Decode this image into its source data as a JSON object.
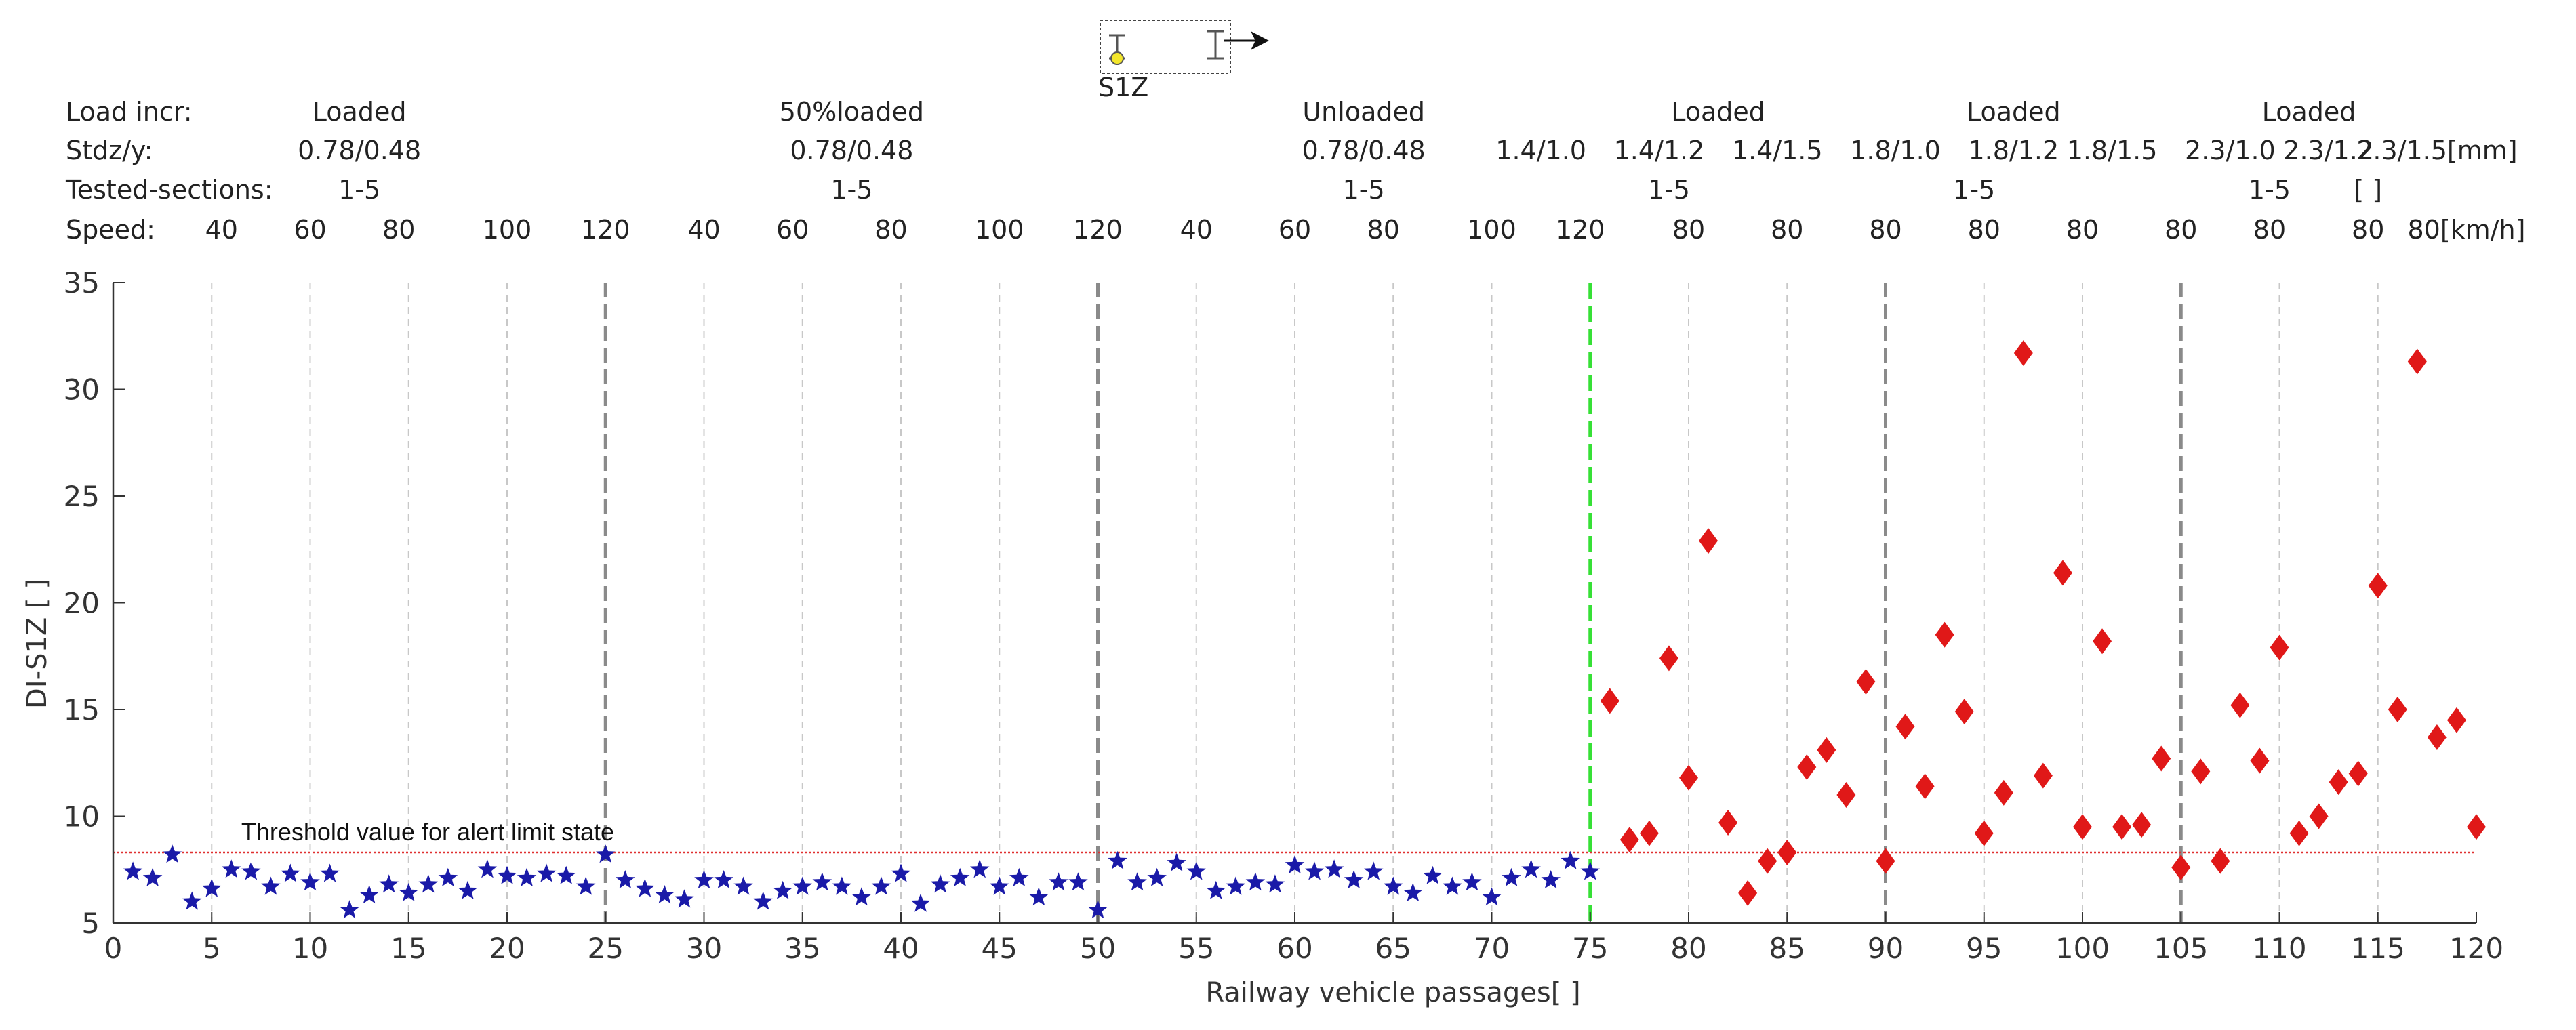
{
  "chart_data": {
    "type": "scatter",
    "title": "",
    "xlabel": "Railway vehicle  passages[ ]",
    "ylabel": "DI-S1Z [ ]",
    "xlim": [
      0,
      120
    ],
    "ylim": [
      5,
      35
    ],
    "xticks": [
      0,
      5,
      10,
      15,
      20,
      25,
      30,
      35,
      40,
      45,
      50,
      55,
      60,
      65,
      70,
      75,
      80,
      85,
      90,
      95,
      100,
      105,
      110,
      115,
      120
    ],
    "yticks": [
      5,
      10,
      15,
      20,
      25,
      30,
      35
    ],
    "minor_gridlines_x": [
      5,
      10,
      15,
      20,
      30,
      35,
      40,
      45,
      55,
      60,
      65,
      70,
      80,
      85,
      95,
      100,
      110,
      115
    ],
    "section_dividers_x": [
      25,
      50,
      90,
      105
    ],
    "damage_onset_x": 75,
    "threshold": {
      "value": 8.3,
      "label": "Threshold value for alert limit state"
    },
    "sensor_label": "S1Z",
    "series": [
      {
        "marker": "star",
        "color": "#1a1aa8",
        "x": [
          1,
          2,
          3,
          4,
          5,
          6,
          7,
          8,
          9,
          10,
          11,
          12,
          13,
          14,
          15,
          16,
          17,
          18,
          19,
          20,
          21,
          22,
          23,
          24,
          25,
          26,
          27,
          28,
          29,
          30,
          31,
          32,
          33,
          34,
          35,
          36,
          37,
          38,
          39,
          40,
          41,
          42,
          43,
          44,
          45,
          46,
          47,
          48,
          49,
          50,
          51,
          52,
          53,
          54,
          55,
          56,
          57,
          58,
          59,
          60,
          61,
          62,
          63,
          64,
          65,
          66,
          67,
          68,
          69,
          70,
          71,
          72,
          73,
          74,
          75
        ],
        "y": [
          7.4,
          7.1,
          8.2,
          6.0,
          6.6,
          7.5,
          7.4,
          6.7,
          7.3,
          6.9,
          7.3,
          5.6,
          6.3,
          6.8,
          6.4,
          6.8,
          7.1,
          6.5,
          7.5,
          7.2,
          7.1,
          7.3,
          7.2,
          6.7,
          8.2,
          7.0,
          6.6,
          6.3,
          6.1,
          7.0,
          7.0,
          6.7,
          6.0,
          6.5,
          6.7,
          6.9,
          6.7,
          6.2,
          6.7,
          7.3,
          5.9,
          6.8,
          7.1,
          7.5,
          6.7,
          7.1,
          6.2,
          6.9,
          6.9,
          5.6,
          7.9,
          6.9,
          7.1,
          7.8,
          7.4,
          6.5,
          6.7,
          6.9,
          6.8,
          7.7,
          7.4,
          7.5,
          7.0,
          7.4,
          6.7,
          6.4,
          7.2,
          6.7,
          6.9,
          6.2,
          7.1,
          7.5,
          7.0,
          7.9,
          7.4
        ]
      },
      {
        "marker": "diamond",
        "color": "#e01818",
        "x": [
          76,
          77,
          78,
          79,
          80,
          81,
          82,
          83,
          84,
          85,
          86,
          87,
          88,
          89,
          90,
          91,
          92,
          93,
          94,
          95,
          96,
          97,
          98,
          99,
          100,
          101,
          102,
          103,
          104,
          105,
          106,
          107,
          108,
          109,
          110,
          111,
          112,
          113,
          114,
          115,
          116,
          117,
          118,
          119,
          120
        ],
        "y": [
          15.4,
          8.9,
          9.2,
          17.4,
          11.8,
          22.9,
          9.7,
          6.4,
          7.9,
          8.3,
          12.3,
          13.1,
          11.0,
          16.3,
          7.9,
          14.2,
          11.4,
          18.5,
          14.9,
          9.2,
          11.1,
          31.7,
          11.9,
          21.4,
          9.5,
          18.2,
          9.5,
          9.6,
          12.7,
          7.6,
          12.1,
          7.9,
          15.2,
          12.6,
          17.9,
          9.2,
          10.0,
          11.6,
          12.0,
          20.8,
          15.0,
          31.3,
          13.7,
          14.5,
          9.5
        ]
      }
    ],
    "header_row_labels": [
      "Load incr:",
      "Stdz/y:",
      "Tested-sections:",
      "Speed:"
    ],
    "header_rows": {
      "load": [
        {
          "text": "Loaded",
          "x": 12.5
        },
        {
          "text": "50%loaded",
          "x": 37.5
        },
        {
          "text": "Unloaded",
          "x": 63.5
        },
        {
          "text": "Loaded",
          "x": 81.5
        },
        {
          "text": "Loaded",
          "x": 96.5
        },
        {
          "text": "Loaded",
          "x": 111.5
        }
      ],
      "std": [
        {
          "text": "0.78/0.48",
          "x": 12.5
        },
        {
          "text": "0.78/0.48",
          "x": 37.5
        },
        {
          "text": "0.78/0.48",
          "x": 63.5
        },
        {
          "text": "1.4/1.0",
          "x": 72.5
        },
        {
          "text": "1.4/1.2",
          "x": 78.5
        },
        {
          "text": "1.4/1.5",
          "x": 84.5
        },
        {
          "text": "1.8/1.0",
          "x": 90.5
        },
        {
          "text": "1.8/1.2",
          "x": 96.5
        },
        {
          "text": "1.8/1.5",
          "x": 101.5
        },
        {
          "text": "2.3/1.0",
          "x": 107.5
        },
        {
          "text": "2.3/1.2",
          "x": 112.5
        },
        {
          "text": "2.3/1.5[mm]",
          "x": 118.0
        }
      ],
      "sections": [
        {
          "text": "1-5",
          "x": 12.5
        },
        {
          "text": "1-5",
          "x": 37.5
        },
        {
          "text": "1-5",
          "x": 63.5
        },
        {
          "text": "1-5",
          "x": 79.0
        },
        {
          "text": "1-5",
          "x": 94.5
        },
        {
          "text": "1-5",
          "x": 109.5
        },
        {
          "text": "[ ]",
          "x": 114.5
        }
      ],
      "speed": [
        {
          "text": "40",
          "x": 5.5
        },
        {
          "text": "60",
          "x": 10.0
        },
        {
          "text": "80",
          "x": 14.5
        },
        {
          "text": "100",
          "x": 20.0
        },
        {
          "text": "120",
          "x": 25.0
        },
        {
          "text": "40",
          "x": 30.0
        },
        {
          "text": "60",
          "x": 34.5
        },
        {
          "text": "80",
          "x": 39.5
        },
        {
          "text": "100",
          "x": 45.0
        },
        {
          "text": "120",
          "x": 50.0
        },
        {
          "text": "40",
          "x": 55.0
        },
        {
          "text": "60",
          "x": 60.0
        },
        {
          "text": "80",
          "x": 64.5
        },
        {
          "text": "100",
          "x": 70.0
        },
        {
          "text": "120",
          "x": 74.5
        },
        {
          "text": "80",
          "x": 80.0
        },
        {
          "text": "80",
          "x": 85.0
        },
        {
          "text": "80",
          "x": 90.0
        },
        {
          "text": "80",
          "x": 95.0
        },
        {
          "text": "80",
          "x": 100.0
        },
        {
          "text": "80",
          "x": 105.0
        },
        {
          "text": "80",
          "x": 109.5
        },
        {
          "text": "80",
          "x": 114.5
        },
        {
          "text": "80[km/h]",
          "x": 119.5
        }
      ]
    }
  }
}
